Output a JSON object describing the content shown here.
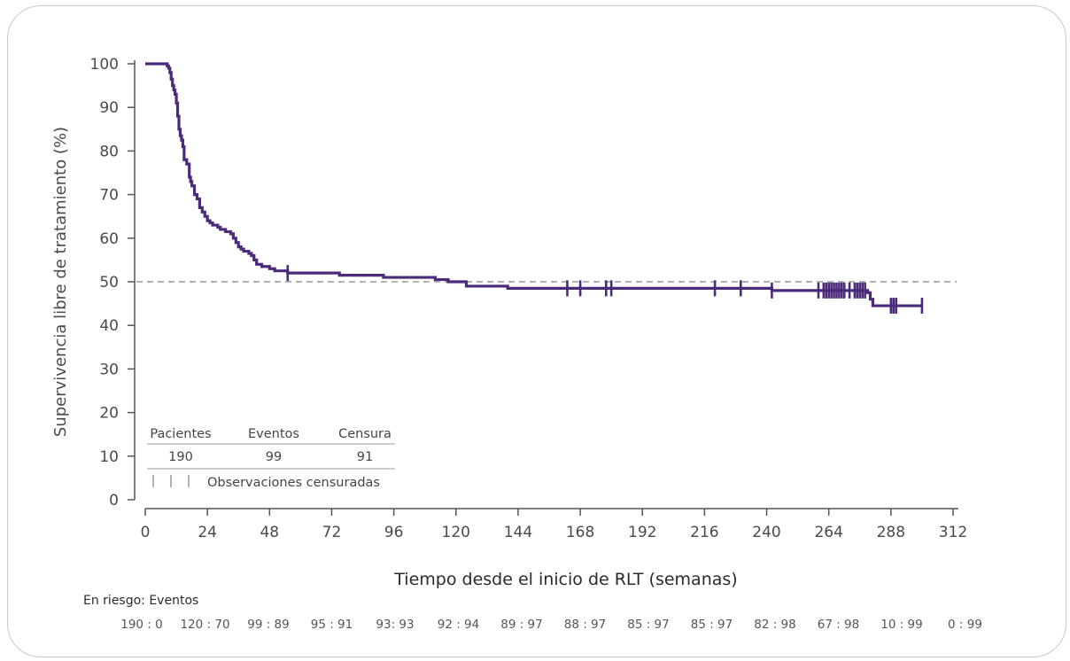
{
  "chart_data": {
    "type": "line",
    "ylabel": "Supervivencia libre de tratamiento (%)",
    "xlabel": "Tiempo desde el inicio de RLT (semanas)",
    "xlim": [
      0,
      312
    ],
    "ylim": [
      0,
      100
    ],
    "x_ticks": [
      "0",
      "24",
      "48",
      "72",
      "96",
      "120",
      "144",
      "168",
      "192",
      "216",
      "240",
      "264",
      "288",
      "312"
    ],
    "y_ticks": [
      "0",
      "10",
      "20",
      "30",
      "40",
      "50",
      "60",
      "70",
      "80",
      "90",
      "100"
    ],
    "reference_line": {
      "y": 50,
      "style": "dashed"
    },
    "line_color": "#4b2a7b",
    "series": [
      {
        "points": [
          [
            0,
            100
          ],
          [
            8,
            100
          ],
          [
            8.5,
            99.5
          ],
          [
            9,
            99
          ],
          [
            9.5,
            98
          ],
          [
            10,
            96.5
          ],
          [
            10.5,
            95
          ],
          [
            11,
            94
          ],
          [
            11.5,
            93
          ],
          [
            12,
            91
          ],
          [
            12.5,
            88
          ],
          [
            13,
            85
          ],
          [
            13.5,
            83.5
          ],
          [
            14,
            82.5
          ],
          [
            14.5,
            81
          ],
          [
            15,
            78
          ],
          [
            16,
            77
          ],
          [
            17,
            74
          ],
          [
            17.5,
            73
          ],
          [
            18,
            72
          ],
          [
            19,
            70
          ],
          [
            20,
            69
          ],
          [
            21,
            67
          ],
          [
            22,
            66
          ],
          [
            23,
            65
          ],
          [
            24,
            64
          ],
          [
            25,
            63.5
          ],
          [
            26,
            63
          ],
          [
            28,
            62.5
          ],
          [
            29,
            62
          ],
          [
            31,
            61.5
          ],
          [
            33,
            61
          ],
          [
            34,
            60
          ],
          [
            35,
            59
          ],
          [
            36,
            58
          ],
          [
            37,
            57.5
          ],
          [
            38,
            57
          ],
          [
            40,
            56.5
          ],
          [
            41,
            56
          ],
          [
            42,
            55
          ],
          [
            43,
            54
          ],
          [
            45,
            53.5
          ],
          [
            48,
            53
          ],
          [
            50,
            52.5
          ],
          [
            55,
            52
          ],
          [
            75,
            51.5
          ],
          [
            92,
            51
          ],
          [
            112,
            50.5
          ],
          [
            117,
            50
          ],
          [
            124,
            49
          ],
          [
            140,
            48.5
          ],
          [
            240,
            48.5
          ],
          [
            242,
            48
          ],
          [
            277,
            48
          ],
          [
            279,
            47.5
          ],
          [
            280,
            46
          ],
          [
            281,
            44.5
          ],
          [
            300,
            44.5
          ]
        ],
        "censored": [
          55,
          163,
          168,
          178,
          180,
          220,
          230,
          242,
          260,
          262,
          263,
          264,
          265,
          266,
          267,
          268,
          269,
          270,
          272,
          274,
          275,
          276,
          277,
          278,
          288,
          289,
          290,
          300
        ]
      }
    ],
    "summary_table": {
      "headers": [
        "Pacientes",
        "Eventos",
        "Censura"
      ],
      "values": [
        "190",
        "99",
        "91"
      ],
      "legend_text": "Observaciones censuradas"
    },
    "at_risk": {
      "label": "En riesgo: Eventos",
      "values": [
        "190 : 0",
        "120 : 70",
        "99 : 89",
        "95 : 91",
        "93: 93",
        "92 : 94",
        "89 : 97",
        "88 : 97",
        "85 : 97",
        "85 : 97",
        "82 : 98",
        "67 : 98",
        "10 : 99",
        "0 : 99"
      ]
    }
  }
}
